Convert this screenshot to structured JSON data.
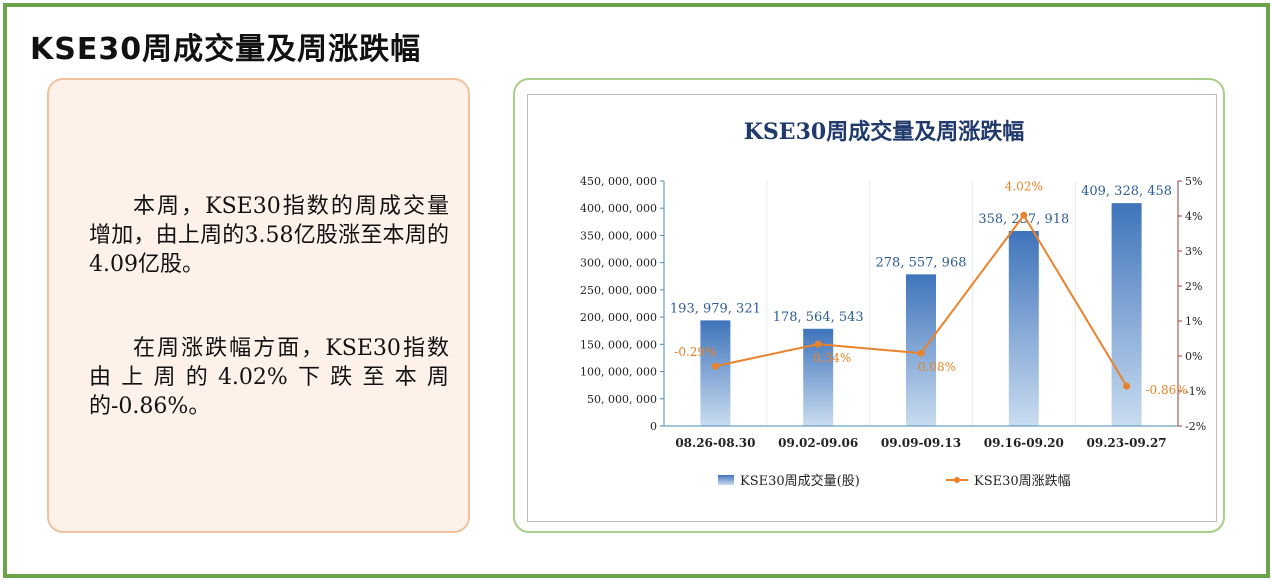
{
  "page": {
    "title": "KSE30周成交量及周涨跌幅"
  },
  "commentary": {
    "paragraph1": "本周，KSE30指数的周成交量增加，由上周的3.58亿股涨至本周的4.09亿股。",
    "paragraph2": "在周涨跌幅方面，KSE30指数由上周的4.02%下跌至本周的-0.86%。"
  },
  "colors": {
    "frame": "#6aa34a",
    "bar_top": "#3f74bb",
    "bar_bottom": "#c9dcf0",
    "line": "#e8832a",
    "title_text": "#1f3a6b",
    "right_axis": "#a33a3a"
  },
  "chart_data": {
    "type": "bar+line",
    "title": "KSE30周成交量及周涨跌幅",
    "categories": [
      "08.26-08.30",
      "09.02-09.06",
      "09.09-09.13",
      "09.16-09.20",
      "09.23-09.27"
    ],
    "series": [
      {
        "name": "KSE30周成交量(股)",
        "type": "bar",
        "axis": "left",
        "values": [
          193979321,
          178564543,
          278557968,
          358237918,
          409328458
        ],
        "labels": [
          "193, 979, 321",
          "178, 564, 543",
          "278, 557, 968",
          "358, 237, 918",
          "409, 328, 458"
        ]
      },
      {
        "name": "KSE30周涨跌幅",
        "type": "line",
        "axis": "right",
        "values": [
          -0.29,
          0.34,
          0.08,
          4.02,
          -0.86
        ],
        "labels": [
          "-0.29%",
          "0.34%",
          "0.08%",
          "4.02%",
          "-0.86%"
        ]
      }
    ],
    "y_left": {
      "min": 0,
      "max": 450000000,
      "ticks": [
        "0",
        "50, 000, 000",
        "100, 000, 000",
        "150, 000, 000",
        "200, 000, 000",
        "250, 000, 000",
        "300, 000, 000",
        "350, 000, 000",
        "400, 000, 000",
        "450, 000, 000"
      ]
    },
    "y_right": {
      "min": -2,
      "max": 5,
      "ticks": [
        "-2%",
        "-1%",
        "0%",
        "1%",
        "2%",
        "3%",
        "4%",
        "5%"
      ]
    },
    "legend_position": "bottom",
    "grid": "vertical"
  }
}
